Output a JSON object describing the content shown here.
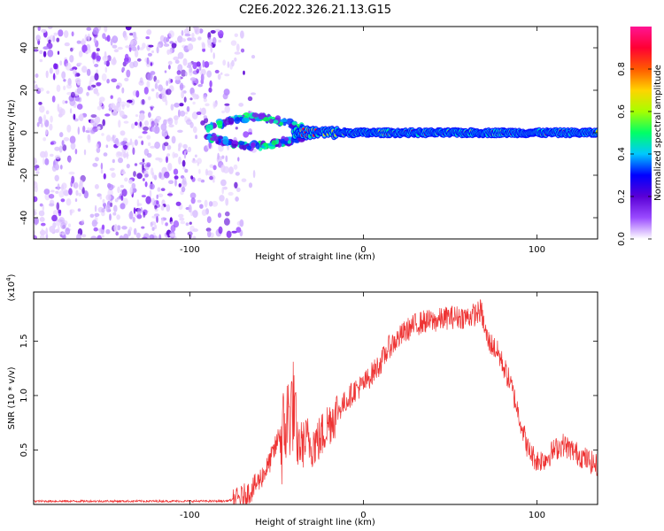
{
  "figure": {
    "title": "C2E6.2022.326.21.13.G15"
  },
  "chart_data": [
    {
      "type": "heatmap",
      "xlabel": "Height of straight line (km)",
      "ylabel": "Frequency (Hz)",
      "xlim": [
        -190,
        135
      ],
      "ylim": [
        -50,
        50
      ],
      "xticks": [
        -100,
        0,
        100
      ],
      "yticks": [
        -40,
        -20,
        0,
        20,
        40
      ],
      "colorbar": {
        "label": "Normalized spectral amplitude",
        "range": [
          0.0,
          1.0
        ],
        "ticks": [
          "0.0",
          "0.2",
          "0.4",
          "0.6",
          "0.8"
        ],
        "colormap": [
          "#ffffff",
          "#9a4bff",
          "#5a00d6",
          "#0000ff",
          "#00c8ff",
          "#00ff66",
          "#a6ff00",
          "#ffd400",
          "#ff5a00",
          "#ff0033",
          "#ff1493"
        ]
      },
      "features": {
        "noise_region_x": [
          -190,
          -75
        ],
        "transition_x": [
          -75,
          -40
        ],
        "branches_at_x_-60": [
          6,
          -5
        ],
        "trace_frequency_hz": 0,
        "trace_x": [
          -40,
          135
        ]
      },
      "grid": false
    },
    {
      "type": "line",
      "xlabel": "Height of straight line (km)",
      "ylabel": "SNR (10 * v/v)",
      "multiplier": "(x10",
      "multiplier_exp": "4",
      "multiplier_close": ")",
      "xlim": [
        -190,
        135
      ],
      "ylim": [
        0,
        1.95
      ],
      "xticks": [
        -100,
        0,
        100
      ],
      "yticks": [
        "0.5",
        "1.0",
        "1.5"
      ],
      "line_color": "#ee3333",
      "envelope_x": [
        -190,
        -150,
        -100,
        -80,
        -72,
        -65,
        -60,
        -55,
        -50,
        -48,
        -45,
        -42,
        -40,
        -38,
        -35,
        -32,
        -30,
        -25,
        -20,
        -15,
        -10,
        -5,
        0,
        5,
        10,
        15,
        20,
        25,
        30,
        35,
        40,
        45,
        50,
        55,
        60,
        65,
        68,
        70,
        72,
        75,
        78,
        80,
        85,
        90,
        95,
        100,
        105,
        110,
        115,
        120,
        125,
        130,
        135
      ],
      "envelope_y": [
        0.03,
        0.03,
        0.03,
        0.03,
        0.05,
        0.12,
        0.22,
        0.35,
        0.55,
        0.7,
        0.9,
        1.05,
        1.1,
        0.55,
        0.55,
        0.6,
        0.55,
        0.6,
        0.75,
        0.85,
        0.95,
        1.05,
        1.1,
        1.2,
        1.3,
        1.45,
        1.52,
        1.6,
        1.65,
        1.68,
        1.68,
        1.7,
        1.72,
        1.72,
        1.72,
        1.75,
        1.78,
        1.6,
        1.5,
        1.45,
        1.38,
        1.3,
        1.1,
        0.8,
        0.5,
        0.4,
        0.42,
        0.5,
        0.55,
        0.5,
        0.45,
        0.4,
        0.35
      ],
      "grid": false
    }
  ]
}
